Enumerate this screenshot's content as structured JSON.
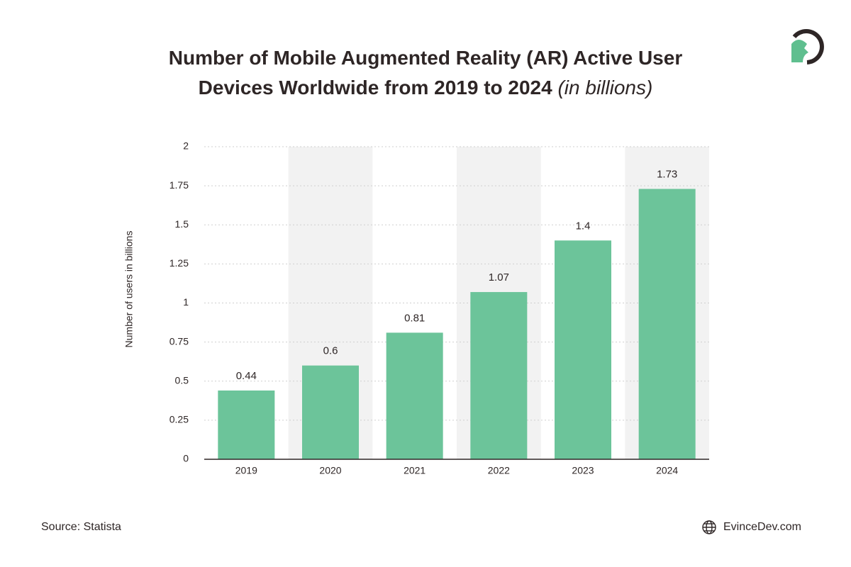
{
  "chart_data": {
    "type": "bar",
    "title": "Number of Mobile Augmented Reality (AR) Active User Devices Worldwide from 2019 to 2024",
    "subtitle": "(in billions)",
    "y_label": "Number of users in billions",
    "categories": [
      "2019",
      "2020",
      "2021",
      "2022",
      "2023",
      "2024"
    ],
    "values": [
      0.44,
      0.6,
      0.81,
      1.07,
      1.4,
      1.73
    ],
    "color": "#6cc49a",
    "alternate_band_color": "#f2f2f2",
    "ylim": [
      0,
      2
    ],
    "yticks": [
      0,
      0.25,
      0.5,
      0.75,
      1,
      1.25,
      1.5,
      1.75,
      2
    ],
    "grid": true,
    "source": "Source: Statista",
    "brand": "EvinceDev.com"
  }
}
